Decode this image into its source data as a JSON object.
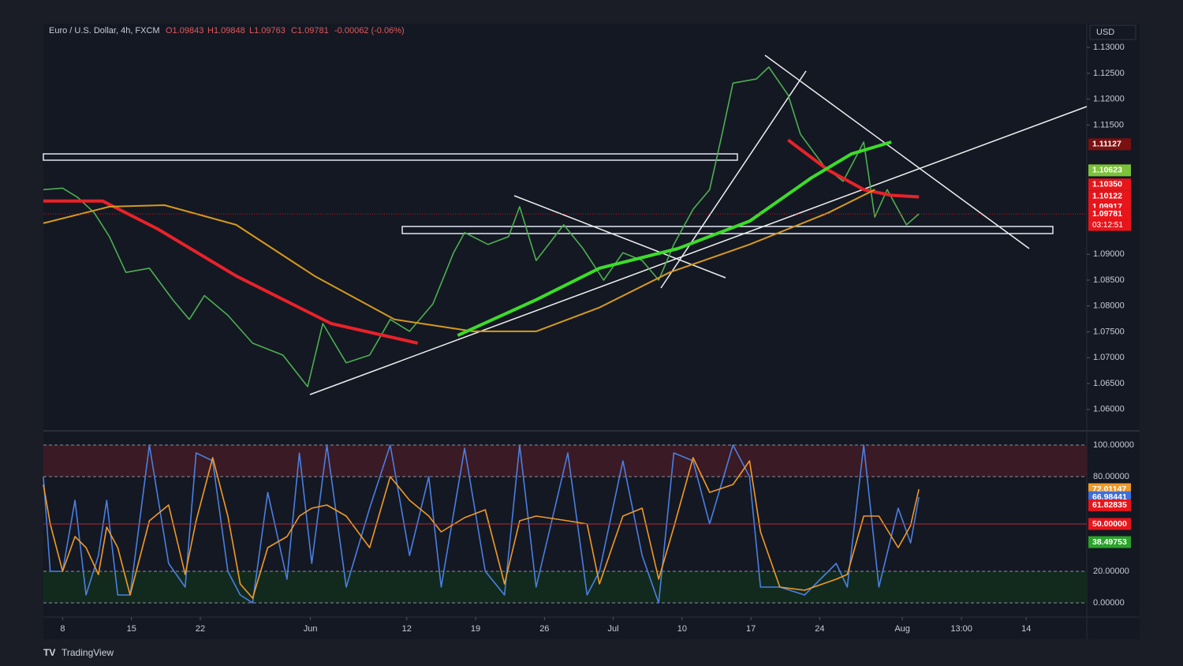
{
  "header": {
    "symbol": "Euro / U.S. Dollar, 4h, FXCM",
    "open": "O1.09843",
    "high": "H1.09848",
    "low": "L1.09763",
    "close": "C1.09781",
    "change": "-0.00062 (-0.06%)",
    "currency": "USD",
    "brand": "TradingView"
  },
  "chart_data": [
    {
      "type": "line",
      "xlim": [
        -1.4,
        74.4
      ],
      "ylim": [
        1.056,
        1.1346
      ],
      "yticks": [
        {
          "value": 1.06,
          "label": "1.06000"
        },
        {
          "value": 1.065,
          "label": "1.06500"
        },
        {
          "value": 1.07,
          "label": "1.07000"
        },
        {
          "value": 1.075,
          "label": "1.07500"
        },
        {
          "value": 1.08,
          "label": "1.08000"
        },
        {
          "value": 1.085,
          "label": "1.08500"
        },
        {
          "value": 1.09,
          "label": "1.09000"
        },
        {
          "value": 1.115,
          "label": "1.11500"
        },
        {
          "value": 1.12,
          "label": "1.12000"
        },
        {
          "value": 1.125,
          "label": "1.12500"
        },
        {
          "value": 1.13,
          "label": "1.13000"
        }
      ],
      "xticks": [
        {
          "value": 0,
          "label": "8"
        },
        {
          "value": 5,
          "label": "15"
        },
        {
          "value": 10,
          "label": "22"
        },
        {
          "value": 18,
          "label": "Jun"
        },
        {
          "value": 25,
          "label": "12"
        },
        {
          "value": 30,
          "label": "19"
        },
        {
          "value": 35,
          "label": "26"
        },
        {
          "value": 40,
          "label": "Jul"
        },
        {
          "value": 45,
          "label": "10"
        },
        {
          "value": 50,
          "label": "17"
        },
        {
          "value": 55,
          "label": "24"
        },
        {
          "value": 61,
          "label": "Aug"
        },
        {
          "value": 65.3,
          "label": "13:00"
        },
        {
          "value": 70,
          "label": "14"
        }
      ],
      "series": [
        {
          "color": "#4caf50",
          "width": 1.6,
          "x": [
            -1.4,
            0,
            1.1,
            2.3,
            3.4,
            4.6,
            6.3,
            8,
            9.2,
            10.3,
            12,
            13.8,
            16,
            17.8,
            18.9,
            20.6,
            22.3,
            23.8,
            25.2,
            26.9,
            28.4,
            29.2,
            30.9,
            32.4,
            33.2,
            34.4,
            36.4,
            37.8,
            39.3,
            40.7,
            42.1,
            43.3,
            44.4,
            45.8,
            47,
            47.9,
            48.7,
            50.4,
            51.3,
            52.7,
            53.6,
            55.3,
            56.7,
            58.2,
            59,
            59.9,
            61.3,
            62.2
          ],
          "values": [
            1.1025,
            1.1028,
            1.101,
            1.098,
            1.0934,
            1.0865,
            1.0873,
            1.0812,
            1.0774,
            1.082,
            1.0782,
            1.0728,
            1.0705,
            1.0644,
            1.0766,
            1.069,
            1.0705,
            1.0774,
            1.0751,
            1.0804,
            1.0903,
            1.0942,
            1.0919,
            1.0934,
            1.0992,
            1.0888,
            1.0957,
            1.0911,
            1.085,
            1.0903,
            1.0888,
            1.085,
            1.0919,
            1.0987,
            1.1025,
            1.1132,
            1.1231,
            1.1239,
            1.1262,
            1.1208,
            1.1132,
            1.1071,
            1.1041,
            1.1117,
            1.0972,
            1.1025,
            1.0957,
            1.0978
          ]
        },
        {
          "color": "#e8222a",
          "width": 4,
          "x": [
            -1.4,
            2.9,
            6.9,
            12.6,
            19.5,
            25.8,
            39,
            52.7,
            55.6,
            58.2,
            60.2,
            62.2
          ],
          "values": [
            1.1003,
            1.1003,
            1.0949,
            1.0858,
            1.0766,
            1.0728,
            null,
            1.1121,
            1.1063,
            1.1025,
            1.1014,
            1.1011
          ]
        },
        {
          "color": "#d59a1e",
          "width": 2,
          "x": [
            -1.4,
            3.4,
            7.4,
            12.6,
            18.3,
            24.1,
            29.8,
            34.4,
            39,
            44.1,
            49.9,
            55.6,
            59
          ],
          "values": [
            1.096,
            1.0992,
            1.0995,
            1.0957,
            1.0858,
            1.0774,
            1.0751,
            1.0751,
            1.0797,
            1.0865,
            1.0919,
            1.098,
            1.1025
          ]
        },
        {
          "color": "#3ddc2a",
          "width": 4,
          "x": [
            28.7,
            34.4,
            39,
            44.7,
            49.9,
            54.4,
            57.3,
            60.2
          ],
          "values": [
            1.0743,
            1.0812,
            1.0873,
            1.0911,
            1.0964,
            1.1048,
            1.1094,
            1.1117
          ]
        }
      ],
      "price_labels": [
        {
          "value": 1.11127,
          "label": "1.11127",
          "color": "#7a1010"
        },
        {
          "value": 1.10623,
          "label": "1.10623",
          "color": "#7cc23a"
        },
        {
          "value": 1.1035,
          "label": "1.10350",
          "color": "#e8151b"
        },
        {
          "value": 1.10122,
          "label": "1.10122",
          "color": "#e8151b"
        },
        {
          "value": 1.09917,
          "label": "1.09917",
          "color": "#e8151b"
        },
        {
          "value": 1.09781,
          "label": "1.09781",
          "color": "#e8151b"
        }
      ],
      "countdown": "03:12:51"
    },
    {
      "type": "line",
      "xlim": [
        -1.4,
        74.4
      ],
      "ylim": [
        -8,
        108
      ],
      "yticks": [
        {
          "value": 0,
          "label": "0.00000"
        },
        {
          "value": 20,
          "label": "20.00000"
        },
        {
          "value": 80,
          "label": "80.00000"
        },
        {
          "value": 100,
          "label": "100.00000"
        }
      ],
      "series": [
        {
          "color": "#4a7fe0",
          "x": [
            -1.4,
            -0.9,
            0,
            0.9,
            1.7,
            2.6,
            3.2,
            4,
            4.9,
            6.3,
            7.7,
            8.9,
            9.7,
            10.9,
            12,
            12.9,
            13.8,
            14.9,
            16.3,
            17.2,
            18.1,
            19.2,
            20.6,
            22.3,
            23.8,
            25.2,
            26.6,
            27.5,
            29.2,
            30.7,
            32.1,
            33.2,
            34.4,
            36.7,
            38.1,
            39,
            40.7,
            42.1,
            43.3,
            44.4,
            45.8,
            47,
            48.7,
            49.9,
            50.7,
            52.1,
            53.9,
            56.2,
            57,
            58.2,
            59.3,
            60.7,
            61.6,
            62.2
          ],
          "values": [
            80,
            20,
            20,
            65,
            5,
            30,
            65,
            5,
            5,
            100,
            25,
            10,
            95,
            90,
            20,
            5,
            0,
            70,
            15,
            95,
            25,
            100,
            10,
            60,
            100,
            30,
            80,
            10,
            98,
            20,
            5,
            100,
            10,
            95,
            5,
            20,
            90,
            30,
            0,
            95,
            90,
            50,
            100,
            80,
            10,
            10,
            5,
            25,
            10,
            100,
            10,
            60,
            38,
            67
          ]
        },
        {
          "color": "#f09a28",
          "x": [
            -1.4,
            -0.9,
            0,
            0.9,
            1.7,
            2.6,
            3.2,
            4,
            4.9,
            6.3,
            7.7,
            8.9,
            9.7,
            10.9,
            12,
            12.9,
            13.8,
            14.9,
            16.3,
            17.2,
            18.1,
            19.2,
            20.6,
            22.3,
            23.8,
            25.2,
            26.6,
            27.5,
            29.2,
            30.7,
            32.1,
            33.2,
            34.4,
            36.7,
            38.1,
            39,
            40.7,
            42.1,
            43.3,
            44.4,
            45.8,
            47,
            48.7,
            49.9,
            50.7,
            52.1,
            53.9,
            56.2,
            57,
            58.2,
            59.3,
            60.7,
            61.6,
            62.2
          ],
          "values": [
            75,
            50,
            20,
            42,
            35,
            18,
            48,
            35,
            5,
            52,
            62,
            18,
            52,
            92,
            55,
            12,
            3,
            35,
            42,
            55,
            60,
            62,
            55,
            35,
            80,
            65,
            55,
            45,
            54,
            59,
            12,
            52,
            55,
            52,
            50,
            12,
            55,
            60,
            15,
            48,
            92,
            70,
            75,
            90,
            45,
            10,
            8,
            15,
            18,
            55,
            55,
            35,
            49,
            72
          ]
        }
      ],
      "level_labels": [
        {
          "value": 72.01147,
          "label": "72.01147",
          "color": "#f09a28"
        },
        {
          "value": 66.98441,
          "label": "66.98441",
          "color": "#3f6fd8"
        },
        {
          "value": 61.82835,
          "label": "61.82835",
          "color": "#e8151b"
        },
        {
          "value": 50,
          "label": "50.00000",
          "color": "#e8151b"
        },
        {
          "value": 38.49753,
          "label": "38.49753",
          "color": "#29a329"
        }
      ]
    }
  ]
}
